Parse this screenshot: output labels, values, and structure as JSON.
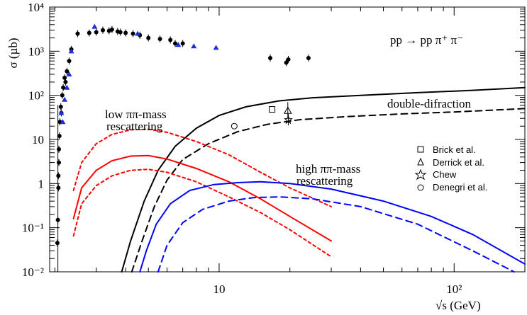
{
  "chart_data": {
    "type": "line",
    "title": "pp → pp π⁺ π⁻",
    "xlabel": "√s (GeV)",
    "ylabel": "σ (µb)",
    "x_scale": "log",
    "y_scale": "log",
    "xlim": [
      1.9,
      200
    ],
    "ylim": [
      0.01,
      10000
    ],
    "x_tick_labels": [
      {
        "value": 10,
        "text": "10"
      },
      {
        "value": 100,
        "text": "10²"
      }
    ],
    "y_tick_labels": [
      {
        "value": 0.01,
        "text": "10⁻²"
      },
      {
        "value": 0.1,
        "text": "10⁻¹"
      },
      {
        "value": 1,
        "text": "1"
      },
      {
        "value": 10,
        "text": "10"
      },
      {
        "value": 100,
        "text": "10²"
      },
      {
        "value": 1000,
        "text": "10³"
      },
      {
        "value": 10000,
        "text": "10⁴"
      }
    ],
    "annotations": {
      "double_diffraction": "double-difraction",
      "low_mass_line1": "low ππ-mass",
      "low_mass_line2": "rescattering",
      "high_mass_line1": "high ππ-mass",
      "high_mass_line2": "rescattering"
    },
    "data_points": {
      "black_dots": [
        [
          2.05,
          0.045
        ],
        [
          2.06,
          0.15
        ],
        [
          2.07,
          0.8
        ],
        [
          2.07,
          1.5
        ],
        [
          2.08,
          3
        ],
        [
          2.08,
          6
        ],
        [
          2.09,
          12
        ],
        [
          2.1,
          25
        ],
        [
          2.12,
          55
        ],
        [
          2.13,
          40
        ],
        [
          2.15,
          100
        ],
        [
          2.17,
          150
        ],
        [
          2.2,
          250
        ],
        [
          2.22,
          200
        ],
        [
          2.25,
          350
        ],
        [
          2.3,
          600
        ],
        [
          2.35,
          1100
        ],
        [
          2.5,
          2500
        ],
        [
          2.8,
          2600
        ],
        [
          3.0,
          2700
        ],
        [
          3.2,
          3000
        ],
        [
          3.4,
          2900
        ],
        [
          3.5,
          3100
        ],
        [
          3.7,
          2800
        ],
        [
          3.8,
          2700
        ],
        [
          4.0,
          2600
        ],
        [
          4.3,
          2500
        ],
        [
          4.6,
          2300
        ],
        [
          5.0,
          2000
        ],
        [
          5.6,
          1900
        ],
        [
          6.2,
          1800
        ],
        [
          6.5,
          1500
        ],
        [
          7.0,
          1500
        ],
        [
          16.5,
          700
        ],
        [
          19.3,
          550
        ],
        [
          19.7,
          650
        ],
        [
          24,
          700
        ]
      ],
      "blue_triangles": [
        [
          2.13,
          40
        ],
        [
          2.16,
          25
        ],
        [
          2.2,
          80
        ],
        [
          2.25,
          150
        ],
        [
          2.3,
          300
        ],
        [
          2.35,
          1000
        ],
        [
          2.95,
          3600
        ],
        [
          4.5,
          2500
        ],
        [
          6.7,
          1400
        ],
        [
          7.8,
          1300
        ],
        [
          9.7,
          1200
        ]
      ]
    },
    "legend_points": [
      {
        "marker": "square",
        "x": 16.8,
        "y": 48,
        "label": "Brick et al."
      },
      {
        "marker": "triangle",
        "x": 19.6,
        "y": 45,
        "label": "Derrick et al."
      },
      {
        "marker": "star",
        "x": 19.7,
        "y": 28,
        "label": "Chew"
      },
      {
        "marker": "circle",
        "x": 11.6,
        "y": 20,
        "label": "Denegri et al."
      }
    ],
    "series": [
      {
        "color": "#000000",
        "dash": "solid",
        "points": [
          [
            3.85,
            0.01
          ],
          [
            4.2,
            0.05
          ],
          [
            4.8,
            0.4
          ],
          [
            5.5,
            2
          ],
          [
            6.5,
            7
          ],
          [
            8,
            18
          ],
          [
            10,
            35
          ],
          [
            13,
            55
          ],
          [
            18,
            75
          ],
          [
            25,
            88
          ],
          [
            40,
            100
          ],
          [
            70,
            115
          ],
          [
            120,
            130
          ],
          [
            200,
            150
          ]
        ]
      },
      {
        "color": "#000000",
        "dash": "dashed",
        "points": [
          [
            4.25,
            0.01
          ],
          [
            4.7,
            0.05
          ],
          [
            5.3,
            0.3
          ],
          [
            6,
            1.2
          ],
          [
            7,
            3.5
          ],
          [
            9,
            8
          ],
          [
            12,
            15
          ],
          [
            16,
            22
          ],
          [
            22,
            28
          ],
          [
            35,
            33
          ],
          [
            60,
            38
          ],
          [
            100,
            42
          ],
          [
            200,
            50
          ]
        ]
      },
      {
        "color": "#ff0000",
        "dash": "solid",
        "points": [
          [
            2.4,
            0.16
          ],
          [
            2.6,
            0.8
          ],
          [
            3.0,
            2.0
          ],
          [
            3.5,
            3.3
          ],
          [
            4.2,
            4.2
          ],
          [
            5,
            4.3
          ],
          [
            6,
            3.6
          ],
          [
            8,
            2.2
          ],
          [
            11,
            1.1
          ],
          [
            15,
            0.45
          ],
          [
            20,
            0.18
          ],
          [
            30,
            0.05
          ]
        ]
      },
      {
        "color": "#ff0000",
        "dash": "dotted",
        "points": [
          [
            2.4,
            0.7
          ],
          [
            2.6,
            3.0
          ],
          [
            3.0,
            8
          ],
          [
            3.5,
            13
          ],
          [
            4.2,
            16.5
          ],
          [
            5,
            17
          ],
          [
            6,
            14.5
          ],
          [
            8,
            9
          ],
          [
            11,
            4.5
          ],
          [
            15,
            1.8
          ],
          [
            20,
            0.8
          ],
          [
            30,
            0.3
          ]
        ]
      },
      {
        "color": "#ff0000",
        "dash": "dotted",
        "points": [
          [
            2.4,
            0.065
          ],
          [
            2.6,
            0.35
          ],
          [
            3.0,
            0.9
          ],
          [
            3.5,
            1.5
          ],
          [
            4.2,
            2.0
          ],
          [
            5,
            2.1
          ],
          [
            6,
            1.8
          ],
          [
            8,
            1.1
          ],
          [
            11,
            0.5
          ],
          [
            15,
            0.22
          ],
          [
            20,
            0.09
          ],
          [
            30,
            0.022
          ]
        ]
      },
      {
        "color": "#0000ff",
        "dash": "solid",
        "points": [
          [
            4.6,
            0.01
          ],
          [
            4.9,
            0.03
          ],
          [
            5.4,
            0.12
          ],
          [
            6.2,
            0.35
          ],
          [
            7.5,
            0.7
          ],
          [
            9.5,
            0.95
          ],
          [
            12,
            1.05
          ],
          [
            15,
            1.1
          ],
          [
            20,
            1.0
          ],
          [
            30,
            0.75
          ],
          [
            50,
            0.4
          ],
          [
            80,
            0.18
          ],
          [
            120,
            0.07
          ],
          [
            200,
            0.015
          ]
        ]
      },
      {
        "color": "#0000ff",
        "dash": "dashed",
        "points": [
          [
            5.5,
            0.01
          ],
          [
            6,
            0.04
          ],
          [
            7,
            0.13
          ],
          [
            8.5,
            0.26
          ],
          [
            11,
            0.4
          ],
          [
            14,
            0.48
          ],
          [
            18,
            0.5
          ],
          [
            25,
            0.45
          ],
          [
            40,
            0.3
          ],
          [
            70,
            0.12
          ],
          [
            120,
            0.03
          ],
          [
            180,
            0.01
          ]
        ]
      }
    ],
    "grid": false
  }
}
